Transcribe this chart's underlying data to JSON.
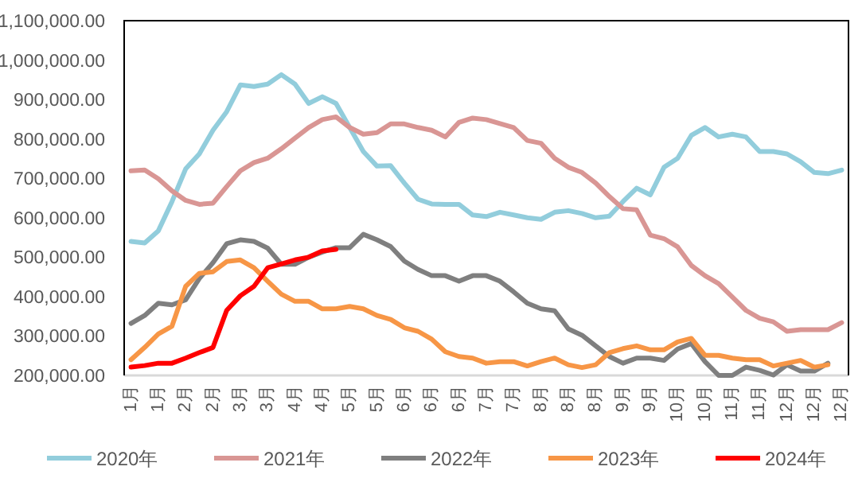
{
  "chart_data": {
    "type": "line",
    "categories": [
      "1月",
      null,
      "1月",
      null,
      "2月",
      null,
      "2月",
      null,
      "3月",
      null,
      "3月",
      null,
      "4月",
      null,
      "4月",
      null,
      "5月",
      null,
      "5月",
      null,
      "6月",
      null,
      "6月",
      null,
      "6月",
      null,
      "7月",
      null,
      "7月",
      null,
      "8月",
      null,
      "8月",
      null,
      "8月",
      null,
      "9月",
      null,
      "9月",
      null,
      "10月",
      null,
      "10月",
      null,
      "11月",
      null,
      "11月",
      null,
      "12月",
      null,
      "12月",
      null,
      "12月"
    ],
    "ylim": [
      200000,
      1100000
    ],
    "yticks": [
      {
        "value": 200000,
        "label": "200,000.00"
      },
      {
        "value": 300000,
        "label": "300,000.00"
      },
      {
        "value": 400000,
        "label": "400,000.00"
      },
      {
        "value": 500000,
        "label": "500,000.00"
      },
      {
        "value": 600000,
        "label": "600,000.00"
      },
      {
        "value": 700000,
        "label": "700,000.00"
      },
      {
        "value": 800000,
        "label": "800,000.00"
      },
      {
        "value": 900000,
        "label": "900,000.00"
      },
      {
        "value": 1000000,
        "label": "1,000,000.00"
      },
      {
        "value": 1100000,
        "label": "1,100,000.00"
      }
    ],
    "legend": "bottom",
    "series": [
      {
        "name": "2020年",
        "color": "#92cddc",
        "values": [
          540000,
          536000,
          567000,
          641000,
          724000,
          762000,
          822000,
          869000,
          937000,
          933000,
          939000,
          963000,
          939000,
          890000,
          907000,
          890000,
          829000,
          768000,
          731000,
          732000,
          688000,
          647000,
          635000,
          634000,
          634000,
          607000,
          603000,
          614000,
          607000,
          600000,
          596000,
          614000,
          618000,
          611000,
          600000,
          604000,
          641000,
          675000,
          658000,
          728000,
          751000,
          809000,
          829000,
          805000,
          812000,
          805000,
          768000,
          768000,
          762000,
          742000,
          715000,
          712000,
          721000
        ]
      },
      {
        "name": "2021年",
        "color": "#d99694",
        "values": [
          719000,
          721000,
          699000,
          668000,
          644000,
          634000,
          637000,
          679000,
          719000,
          740000,
          751000,
          775000,
          802000,
          829000,
          849000,
          856000,
          829000,
          812000,
          816000,
          838000,
          838000,
          829000,
          822000,
          805000,
          842000,
          853000,
          849000,
          839000,
          829000,
          796000,
          789000,
          751000,
          728000,
          715000,
          688000,
          654000,
          623000,
          620000,
          556000,
          547000,
          526000,
          479000,
          453000,
          433000,
          399000,
          365000,
          345000,
          336000,
          312000,
          316000,
          316000,
          316000,
          334000
        ]
      },
      {
        "name": "2022年",
        "color": "#7f7f7f",
        "values": [
          332000,
          352000,
          383000,
          379000,
          392000,
          446000,
          486000,
          534000,
          544000,
          540000,
          523000,
          482000,
          482000,
          500000,
          513000,
          524000,
          524000,
          558000,
          544000,
          527000,
          490000,
          469000,
          453000,
          453000,
          439000,
          453000,
          453000,
          439000,
          412000,
          383000,
          369000,
          364000,
          318000,
          302000,
          275000,
          248000,
          231000,
          244000,
          244000,
          238000,
          267000,
          281000,
          235000,
          200000,
          200000,
          221000,
          213000,
          201000,
          227000,
          211000,
          211000,
          231000,
          null
        ]
      },
      {
        "name": "2023年",
        "color": "#f79646",
        "values": [
          240000,
          271000,
          305000,
          325000,
          426000,
          459000,
          463000,
          489000,
          493000,
          473000,
          439000,
          406000,
          388000,
          388000,
          369000,
          369000,
          375000,
          369000,
          352000,
          342000,
          321000,
          312000,
          292000,
          260000,
          248000,
          244000,
          231000,
          235000,
          235000,
          224000,
          235000,
          244000,
          227000,
          220000,
          227000,
          258000,
          268000,
          275000,
          265000,
          265000,
          285000,
          294000,
          251000,
          251000,
          244000,
          240000,
          240000,
          224000,
          231000,
          238000,
          221000,
          227000,
          null
        ]
      },
      {
        "name": "2024年",
        "color": "#ff0000",
        "values": [
          221000,
          225000,
          231000,
          231000,
          244000,
          258000,
          271000,
          365000,
          402000,
          426000,
          473000,
          483000,
          493000,
          500000,
          516000,
          520000,
          null,
          null,
          null,
          null,
          null,
          null,
          null,
          null,
          null,
          null,
          null,
          null,
          null,
          null,
          null,
          null,
          null,
          null,
          null,
          null,
          null,
          null,
          null,
          null,
          null,
          null,
          null,
          null,
          null,
          null,
          null,
          null,
          null,
          null,
          null,
          null,
          null
        ]
      }
    ]
  }
}
